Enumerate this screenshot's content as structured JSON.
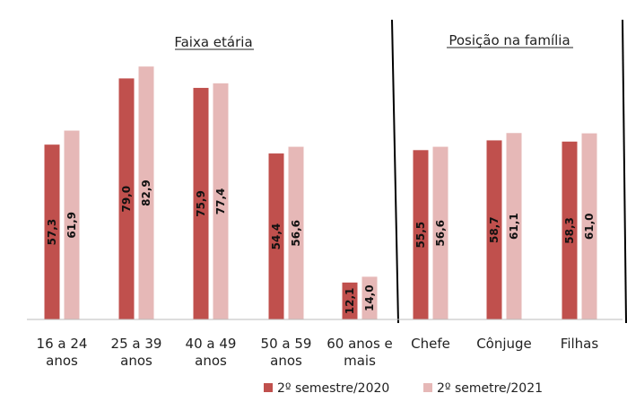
{
  "chart_data": {
    "type": "bar",
    "groups": [
      {
        "title": "Faixa etária"
      },
      {
        "title": "Posição na família"
      }
    ],
    "categories": [
      {
        "label_lines": [
          "16 a 24",
          "anos"
        ],
        "group": 0
      },
      {
        "label_lines": [
          "25 a 39",
          "anos"
        ],
        "group": 0
      },
      {
        "label_lines": [
          "40 a 49",
          "anos"
        ],
        "group": 0
      },
      {
        "label_lines": [
          "50 a 59",
          "anos"
        ],
        "group": 0
      },
      {
        "label_lines": [
          "60 anos e",
          "mais"
        ],
        "group": 0
      },
      {
        "label_lines": [
          "Chefe"
        ],
        "group": 1
      },
      {
        "label_lines": [
          "Cônjuge"
        ],
        "group": 1
      },
      {
        "label_lines": [
          "Filhas"
        ],
        "group": 1
      }
    ],
    "series": [
      {
        "name": "2º semestre/2020",
        "color": "#c0504d",
        "values": [
          57.3,
          79.0,
          75.9,
          54.4,
          12.1,
          55.5,
          58.7,
          58.3
        ],
        "labels": [
          "57,3",
          "79,0",
          "75,9",
          "54,4",
          "12,1",
          "55,5",
          "58,7",
          "58,3"
        ]
      },
      {
        "name": "2º semetre/2021",
        "color": "#e6b8b7",
        "values": [
          61.9,
          82.9,
          77.4,
          56.6,
          14.0,
          56.6,
          61.1,
          61.0
        ],
        "labels": [
          "61,9",
          "82,9",
          "77,4",
          "56,6",
          "14,0",
          "56,6",
          "61,1",
          "61,0"
        ]
      }
    ],
    "ylim": [
      0,
      100
    ],
    "legend_position": "bottom-right"
  }
}
